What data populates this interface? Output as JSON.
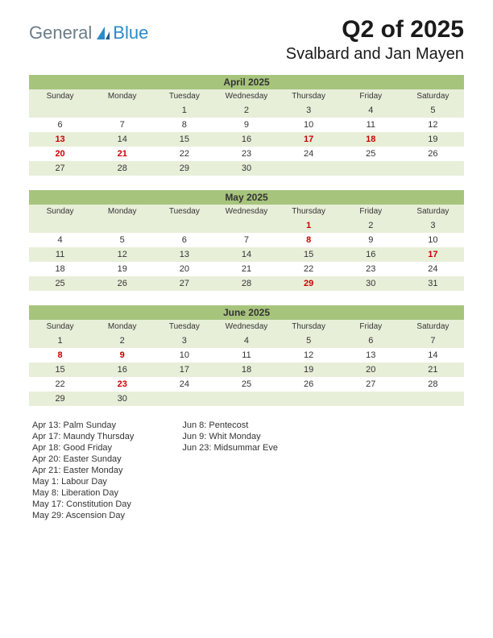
{
  "logo": {
    "text1": "General",
    "text2": "Blue"
  },
  "title": {
    "main": "Q2 of 2025",
    "sub": "Svalbard and Jan Mayen"
  },
  "colors": {
    "header_bg": "#a7c47d",
    "dayhead_bg": "#e8efd9",
    "row_alt_bg": "#e8efd9",
    "row_bg": "#ffffff",
    "holiday_text": "#cc0000"
  },
  "daynames": [
    "Sunday",
    "Monday",
    "Tuesday",
    "Wednesday",
    "Thursday",
    "Friday",
    "Saturday"
  ],
  "months": [
    {
      "title": "April 2025",
      "weeks": [
        [
          {
            "d": ""
          },
          {
            "d": ""
          },
          {
            "d": "1"
          },
          {
            "d": "2"
          },
          {
            "d": "3"
          },
          {
            "d": "4"
          },
          {
            "d": "5"
          }
        ],
        [
          {
            "d": "6"
          },
          {
            "d": "7"
          },
          {
            "d": "8"
          },
          {
            "d": "9"
          },
          {
            "d": "10"
          },
          {
            "d": "11"
          },
          {
            "d": "12"
          }
        ],
        [
          {
            "d": "13",
            "h": true
          },
          {
            "d": "14"
          },
          {
            "d": "15"
          },
          {
            "d": "16"
          },
          {
            "d": "17",
            "h": true
          },
          {
            "d": "18",
            "h": true
          },
          {
            "d": "19"
          }
        ],
        [
          {
            "d": "20",
            "h": true
          },
          {
            "d": "21",
            "h": true
          },
          {
            "d": "22"
          },
          {
            "d": "23"
          },
          {
            "d": "24"
          },
          {
            "d": "25"
          },
          {
            "d": "26"
          }
        ],
        [
          {
            "d": "27"
          },
          {
            "d": "28"
          },
          {
            "d": "29"
          },
          {
            "d": "30"
          },
          {
            "d": ""
          },
          {
            "d": ""
          },
          {
            "d": ""
          }
        ]
      ]
    },
    {
      "title": "May 2025",
      "weeks": [
        [
          {
            "d": ""
          },
          {
            "d": ""
          },
          {
            "d": ""
          },
          {
            "d": ""
          },
          {
            "d": "1",
            "h": true
          },
          {
            "d": "2"
          },
          {
            "d": "3"
          }
        ],
        [
          {
            "d": "4"
          },
          {
            "d": "5"
          },
          {
            "d": "6"
          },
          {
            "d": "7"
          },
          {
            "d": "8",
            "h": true
          },
          {
            "d": "9"
          },
          {
            "d": "10"
          }
        ],
        [
          {
            "d": "11"
          },
          {
            "d": "12"
          },
          {
            "d": "13"
          },
          {
            "d": "14"
          },
          {
            "d": "15"
          },
          {
            "d": "16"
          },
          {
            "d": "17",
            "h": true
          }
        ],
        [
          {
            "d": "18"
          },
          {
            "d": "19"
          },
          {
            "d": "20"
          },
          {
            "d": "21"
          },
          {
            "d": "22"
          },
          {
            "d": "23"
          },
          {
            "d": "24"
          }
        ],
        [
          {
            "d": "25"
          },
          {
            "d": "26"
          },
          {
            "d": "27"
          },
          {
            "d": "28"
          },
          {
            "d": "29",
            "h": true
          },
          {
            "d": "30"
          },
          {
            "d": "31"
          }
        ]
      ]
    },
    {
      "title": "June 2025",
      "weeks": [
        [
          {
            "d": "1"
          },
          {
            "d": "2"
          },
          {
            "d": "3"
          },
          {
            "d": "4"
          },
          {
            "d": "5"
          },
          {
            "d": "6"
          },
          {
            "d": "7"
          }
        ],
        [
          {
            "d": "8",
            "h": true
          },
          {
            "d": "9",
            "h": true
          },
          {
            "d": "10"
          },
          {
            "d": "11"
          },
          {
            "d": "12"
          },
          {
            "d": "13"
          },
          {
            "d": "14"
          }
        ],
        [
          {
            "d": "15"
          },
          {
            "d": "16"
          },
          {
            "d": "17"
          },
          {
            "d": "18"
          },
          {
            "d": "19"
          },
          {
            "d": "20"
          },
          {
            "d": "21"
          }
        ],
        [
          {
            "d": "22"
          },
          {
            "d": "23",
            "h": true
          },
          {
            "d": "24"
          },
          {
            "d": "25"
          },
          {
            "d": "26"
          },
          {
            "d": "27"
          },
          {
            "d": "28"
          }
        ],
        [
          {
            "d": "29"
          },
          {
            "d": "30"
          },
          {
            "d": ""
          },
          {
            "d": ""
          },
          {
            "d": ""
          },
          {
            "d": ""
          },
          {
            "d": ""
          }
        ]
      ]
    }
  ],
  "holidays_col1": [
    "Apr 13: Palm Sunday",
    "Apr 17: Maundy Thursday",
    "Apr 18: Good Friday",
    "Apr 20: Easter Sunday",
    "Apr 21: Easter Monday",
    "May 1: Labour Day",
    "May 8: Liberation Day",
    "May 17: Constitution Day",
    "May 29: Ascension Day"
  ],
  "holidays_col2": [
    "Jun 8: Pentecost",
    "Jun 9: Whit Monday",
    "Jun 23: Midsummar Eve"
  ]
}
